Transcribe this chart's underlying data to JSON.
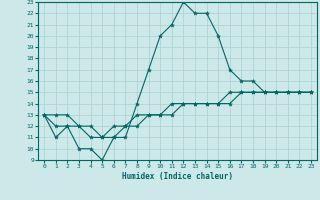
{
  "xlabel": "Humidex (Indice chaleur)",
  "background_color": "#cce8e8",
  "grid_color": "#aacfcf",
  "line_color": "#006666",
  "xlim": [
    -0.5,
    23.5
  ],
  "ylim": [
    9,
    23
  ],
  "x_ticks": [
    0,
    1,
    2,
    3,
    4,
    5,
    6,
    7,
    8,
    9,
    10,
    11,
    12,
    13,
    14,
    15,
    16,
    17,
    18,
    19,
    20,
    21,
    22,
    23
  ],
  "y_ticks": [
    9,
    10,
    11,
    12,
    13,
    14,
    15,
    16,
    17,
    18,
    19,
    20,
    21,
    22,
    23
  ],
  "line1_x": [
    0,
    1,
    2,
    3,
    4,
    5,
    6,
    7,
    8,
    9,
    10,
    11,
    12,
    13,
    14,
    15,
    16,
    17,
    18,
    19,
    20,
    21,
    22,
    23
  ],
  "line1_y": [
    13,
    11,
    12,
    10,
    10,
    9,
    11,
    11,
    14,
    17,
    20,
    21,
    23,
    22,
    22,
    20,
    17,
    16,
    16,
    15,
    15,
    15,
    15,
    15
  ],
  "line2_x": [
    0,
    1,
    2,
    3,
    4,
    5,
    6,
    7,
    8,
    9,
    10,
    11,
    12,
    13,
    14,
    15,
    16,
    17,
    18,
    19,
    20,
    21,
    22,
    23
  ],
  "line2_y": [
    13,
    12,
    12,
    12,
    11,
    11,
    12,
    12,
    13,
    13,
    13,
    14,
    14,
    14,
    14,
    14,
    14,
    15,
    15,
    15,
    15,
    15,
    15,
    15
  ],
  "line3_x": [
    0,
    1,
    2,
    3,
    4,
    5,
    6,
    7,
    8,
    9,
    10,
    11,
    12,
    13,
    14,
    15,
    16,
    17,
    18,
    19,
    20,
    21,
    22,
    23
  ],
  "line3_y": [
    13,
    13,
    13,
    12,
    12,
    11,
    11,
    12,
    12,
    13,
    13,
    13,
    14,
    14,
    14,
    14,
    15,
    15,
    15,
    15,
    15,
    15,
    15,
    15
  ]
}
